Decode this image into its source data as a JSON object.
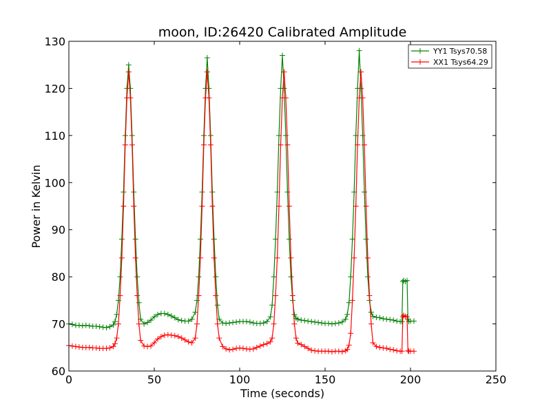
{
  "chart_data": {
    "type": "line",
    "title": "moon, ID:26420 Calibrated Amplitude",
    "xlabel": "Time (seconds)",
    "ylabel": "Power in Kelvin",
    "xlim": [
      0,
      250
    ],
    "ylim": [
      60,
      130
    ],
    "xticks": [
      0,
      50,
      100,
      150,
      200,
      250
    ],
    "yticks": [
      60,
      70,
      80,
      90,
      100,
      110,
      120,
      130
    ],
    "grid": false,
    "legend_position": "top-right",
    "marker": "+",
    "series": [
      {
        "name": "YY1 Tsys70.58",
        "color": "#008000",
        "x": [
          0,
          2,
          4,
          6,
          8,
          10,
          12,
          14,
          16,
          18,
          20,
          22,
          24,
          26,
          27,
          28,
          29,
          30,
          31,
          32,
          33,
          34,
          35,
          36,
          37,
          38,
          39,
          40,
          41,
          42,
          44,
          46,
          48,
          50,
          52,
          54,
          56,
          58,
          60,
          62,
          64,
          66,
          68,
          70,
          72,
          74,
          75,
          76,
          77,
          78,
          79,
          80,
          81,
          82,
          83,
          84,
          85,
          86,
          87,
          88,
          90,
          92,
          94,
          96,
          98,
          100,
          102,
          104,
          106,
          108,
          110,
          112,
          114,
          116,
          118,
          119,
          120,
          121,
          122,
          123,
          124,
          125,
          126,
          127,
          128,
          129,
          130,
          131,
          132,
          133,
          134,
          136,
          138,
          140,
          142,
          144,
          146,
          148,
          150,
          152,
          154,
          156,
          158,
          160,
          162,
          163,
          164,
          165,
          166,
          167,
          168,
          169,
          170,
          171,
          172,
          173,
          174,
          175,
          176,
          177,
          178,
          180,
          182,
          184,
          186,
          188,
          190,
          192,
          194,
          195,
          195.5,
          196,
          197,
          198,
          198.5,
          199,
          200,
          202
        ],
        "y": [
          70.0,
          69.9,
          69.7,
          69.7,
          69.6,
          69.7,
          69.6,
          69.5,
          69.5,
          69.4,
          69.3,
          69.2,
          69.4,
          69.8,
          70.5,
          72.0,
          75.0,
          80.0,
          88.0,
          98.0,
          110.0,
          120.0,
          125.0,
          120.0,
          110.0,
          98.0,
          88.0,
          80.0,
          74.5,
          71.0,
          70.0,
          70.3,
          70.8,
          71.5,
          72.0,
          72.2,
          72.2,
          72.0,
          71.7,
          71.3,
          70.9,
          70.7,
          70.6,
          70.6,
          71.0,
          72.5,
          75.0,
          80.0,
          88.0,
          98.0,
          110.0,
          120.0,
          126.5,
          120.0,
          110.0,
          98.0,
          88.0,
          80.0,
          74.0,
          71.0,
          70.2,
          70.1,
          70.2,
          70.3,
          70.4,
          70.5,
          70.5,
          70.5,
          70.4,
          70.2,
          70.1,
          70.1,
          70.2,
          70.5,
          71.5,
          74.0,
          80.0,
          88.0,
          98.0,
          110.0,
          120.0,
          127.0,
          120.0,
          110.0,
          98.0,
          88.0,
          80.0,
          75.0,
          72.0,
          71.2,
          71.0,
          70.8,
          70.7,
          70.6,
          70.5,
          70.4,
          70.3,
          70.2,
          70.1,
          70.1,
          70.0,
          70.1,
          70.2,
          70.4,
          71.0,
          72.0,
          74.5,
          80.0,
          88.0,
          98.0,
          110.0,
          120.0,
          128.0,
          120.0,
          110.0,
          98.0,
          88.0,
          80.0,
          75.0,
          72.5,
          71.6,
          71.4,
          71.3,
          71.1,
          71.0,
          70.9,
          70.8,
          70.6,
          70.5,
          70.5,
          79.0,
          79.2,
          79.0,
          79.2,
          71.0,
          70.5,
          70.6,
          70.6
        ]
      },
      {
        "name": "XX1 Tsys64.29",
        "color": "#ff0000",
        "x": [
          0,
          2,
          4,
          6,
          8,
          10,
          12,
          14,
          16,
          18,
          20,
          22,
          24,
          26,
          27,
          28,
          29,
          30,
          31,
          32,
          33,
          34,
          35,
          36,
          37,
          38,
          39,
          40,
          41,
          42,
          44,
          46,
          48,
          50,
          52,
          54,
          56,
          58,
          60,
          62,
          64,
          66,
          68,
          70,
          72,
          74,
          75,
          76,
          77,
          78,
          79,
          80,
          81,
          82,
          83,
          84,
          85,
          86,
          87,
          88,
          90,
          92,
          94,
          96,
          98,
          100,
          102,
          104,
          106,
          108,
          110,
          112,
          114,
          116,
          118,
          119,
          120,
          121,
          122,
          123,
          124,
          125,
          126,
          127,
          128,
          129,
          130,
          131,
          132,
          133,
          134,
          136,
          138,
          140,
          142,
          144,
          146,
          148,
          150,
          152,
          154,
          156,
          158,
          160,
          162,
          163,
          164,
          165,
          166,
          167,
          168,
          169,
          170,
          171,
          172,
          173,
          174,
          175,
          176,
          177,
          178,
          180,
          182,
          184,
          186,
          188,
          190,
          192,
          194,
          195,
          195.5,
          196,
          197,
          198,
          198.5,
          199,
          200,
          202
        ],
        "y": [
          65.4,
          65.3,
          65.2,
          65.1,
          65.0,
          65.0,
          65.0,
          64.9,
          64.9,
          64.8,
          64.8,
          64.8,
          64.9,
          65.2,
          65.8,
          67.0,
          70.0,
          76.0,
          84.0,
          95.0,
          108.0,
          118.0,
          123.5,
          118.0,
          108.0,
          95.0,
          84.0,
          76.0,
          70.0,
          66.5,
          65.3,
          65.2,
          65.3,
          66.0,
          66.8,
          67.3,
          67.6,
          67.7,
          67.6,
          67.5,
          67.3,
          67.0,
          66.6,
          66.2,
          66.0,
          67.0,
          70.0,
          76.0,
          84.0,
          95.0,
          108.0,
          118.0,
          123.5,
          118.0,
          108.0,
          95.0,
          84.0,
          76.0,
          70.0,
          67.0,
          65.2,
          64.7,
          64.5,
          64.6,
          64.8,
          64.9,
          64.8,
          64.7,
          64.6,
          64.7,
          65.0,
          65.3,
          65.6,
          65.8,
          66.2,
          67.0,
          70.0,
          76.0,
          84.0,
          95.0,
          108.0,
          118.0,
          123.5,
          118.0,
          108.0,
          95.0,
          84.0,
          76.0,
          70.0,
          67.0,
          65.9,
          65.6,
          65.2,
          64.8,
          64.4,
          64.3,
          64.2,
          64.2,
          64.2,
          64.2,
          64.1,
          64.2,
          64.2,
          64.1,
          64.3,
          64.6,
          65.5,
          68.0,
          75.0,
          84.0,
          95.0,
          108.0,
          118.0,
          123.5,
          118.0,
          108.0,
          95.0,
          84.0,
          76.0,
          70.0,
          66.0,
          65.2,
          65.0,
          64.9,
          64.8,
          64.6,
          64.5,
          64.3,
          64.2,
          64.2,
          71.5,
          71.8,
          71.6,
          71.5,
          64.3,
          64.2,
          64.2,
          64.2
        ]
      }
    ]
  }
}
